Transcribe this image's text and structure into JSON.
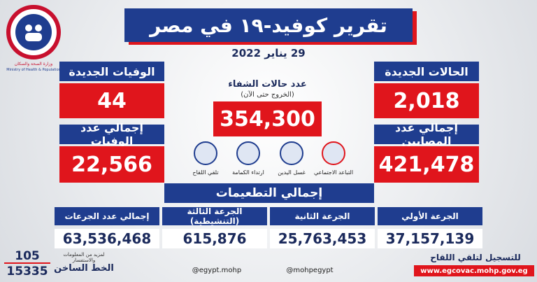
{
  "logo": {
    "arabic": "وزارة الصحة والسكان",
    "english": "Ministry of Health & Population"
  },
  "header": {
    "title": "تقرير كوفيد-١٩ في مصر",
    "date": "29 يناير 2022"
  },
  "new_cases": {
    "label": "الحالات الجديدة",
    "value": "2,018"
  },
  "total_cases": {
    "label": "إجمالي عدد المصابين",
    "value": "421,478"
  },
  "recovered": {
    "label": "عدد حالات الشفاء",
    "sublabel": "(الخروج حتى الآن)",
    "value": "354,300"
  },
  "new_deaths": {
    "label": "الوفيات الجديدة",
    "value": "44"
  },
  "total_deaths": {
    "label": "إجمالي عدد الوفيات",
    "value": "22,566"
  },
  "precautions": [
    "التباعد الاجتماعي",
    "غسل اليدين",
    "ارتداء الكمامة",
    "تلقي اللقاح"
  ],
  "vaccinations": {
    "title": "إجمالي التطعيمات",
    "doses": [
      {
        "label": "الجرعة الأولي",
        "value": "37,157,139"
      },
      {
        "label": "الجرعة الثانية",
        "value": "25,763,453"
      },
      {
        "label": "الجرعة الثالثة (التنشيطية)",
        "value": "615,876"
      },
      {
        "label": "إجمالي عدد الجرعات",
        "value": "63,536,468"
      }
    ]
  },
  "footer": {
    "hotline_numbers": [
      "105",
      "15335"
    ],
    "hotline_note": "لمزيد من المعلومات والاستفسار",
    "hotline_label": "الخط الساخن",
    "facebook": "@egypt.mohp",
    "social": "@mohpegypt",
    "register_label": "للتسجيل لتلقي اللقاح",
    "register_url": "www.egcovac.mohp.gov.eg"
  }
}
